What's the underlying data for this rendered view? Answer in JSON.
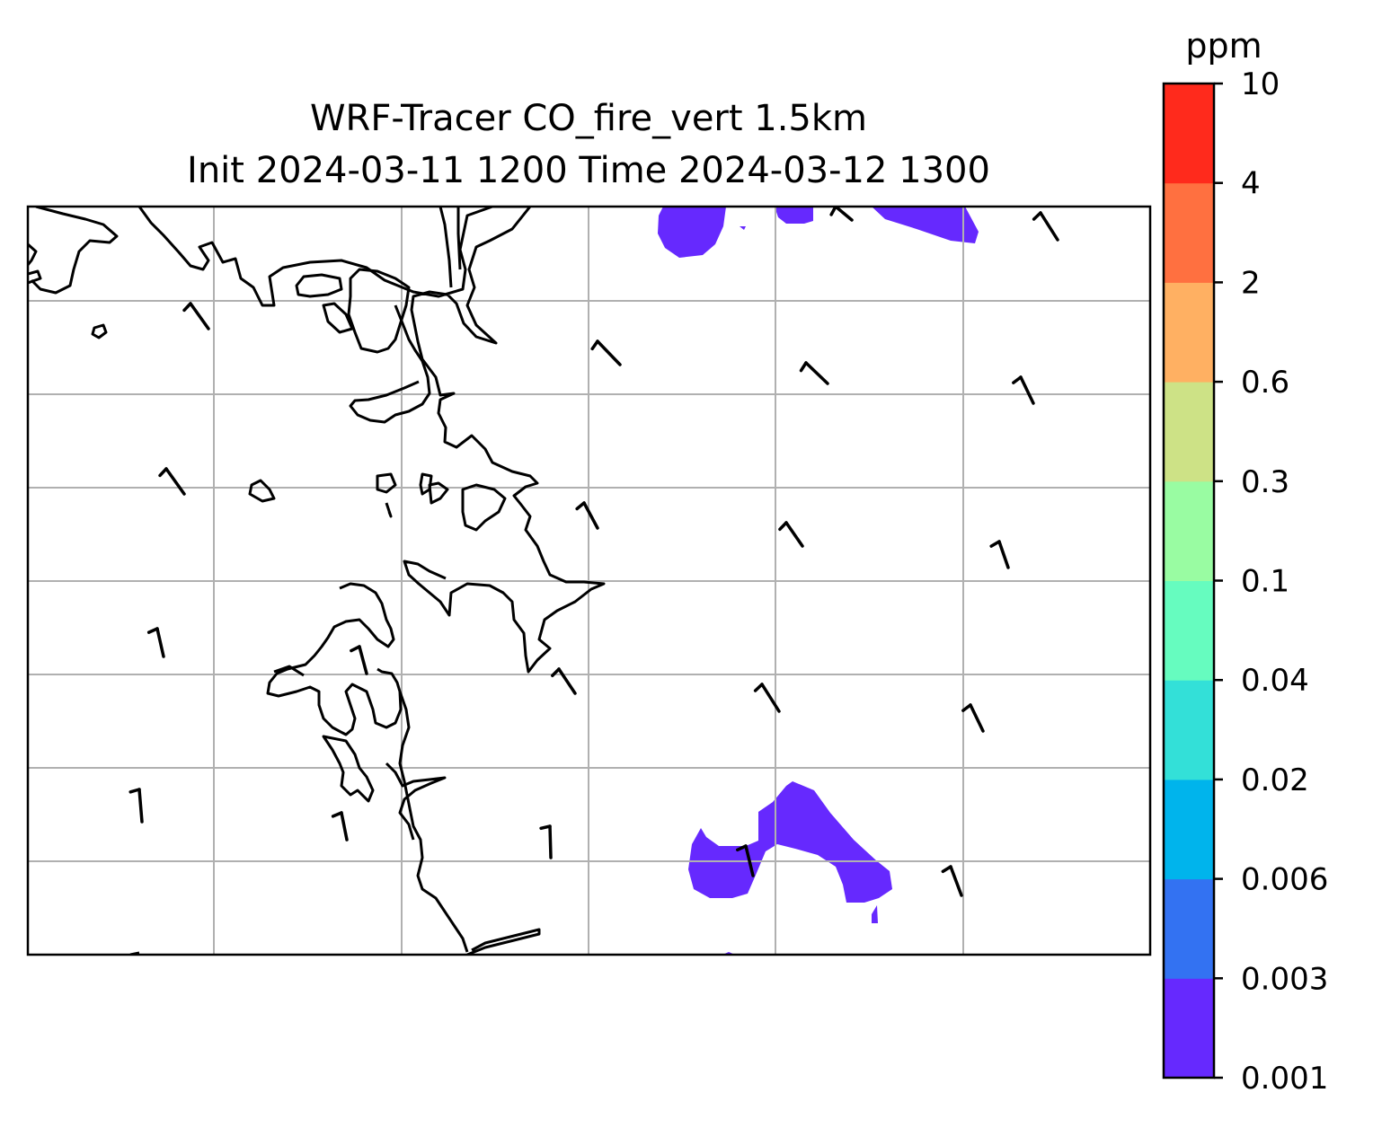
{
  "title_line1": "WRF-Tracer CO_fire_vert 1.5km",
  "title_line2": "Init 2024-03-11 1200 Time 2024-03-12 1300",
  "colorbar": {
    "unit": "ppm",
    "levels": [
      "0.001",
      "0.003",
      "0.006",
      "0.02",
      "0.04",
      "0.1",
      "0.3",
      "0.6",
      "2",
      "4",
      "10"
    ],
    "colors": [
      "#6629fe",
      "#3372f2",
      "#00b4ec",
      "#33e0d8",
      "#66fcbf",
      "#99fca2",
      "#cde286",
      "#ffb062",
      "#ff7040",
      "#ff2a1c"
    ]
  },
  "map": {
    "coastline_color": "#000000",
    "gridline_color": "#b0b0b0",
    "plume_color": "#6629fe",
    "wind_barb_color": "#000000"
  }
}
